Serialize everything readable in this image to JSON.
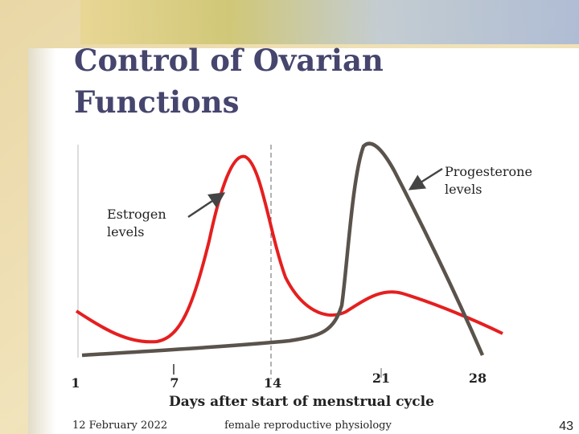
{
  "slide": {
    "title_lines": [
      "Control of Ovarian",
      "Functions"
    ],
    "labels": {
      "progesterone": [
        "Progesterone",
        "levels"
      ],
      "estrogen": [
        "Estrogen",
        "levels"
      ]
    },
    "x_ticks": [
      "1",
      "7",
      "14",
      "21",
      "28"
    ],
    "x_axis_title": "Days after start of menstrual cycle",
    "footer": {
      "date": "12 February 2022",
      "center": "female reproductive physiology",
      "page": "43"
    }
  }
}
